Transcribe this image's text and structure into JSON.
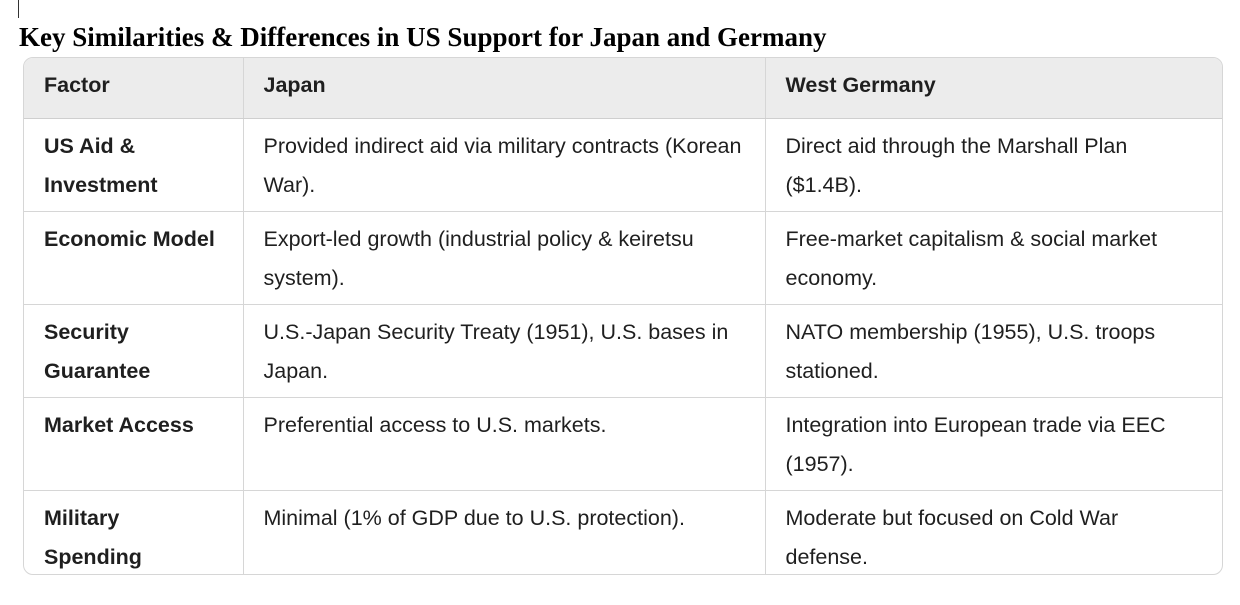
{
  "title": "Key Similarities & Differences in US Support for Japan and Germany",
  "table": {
    "headers": [
      "Factor",
      "Japan",
      "West Germany"
    ],
    "rows": [
      [
        "US Aid & Investment",
        "Provided indirect aid via military contracts (Korean War).",
        "Direct aid through the Marshall Plan ($1.4B)."
      ],
      [
        "Economic Model",
        "Export-led growth (industrial policy & keiretsu system).",
        "Free-market capitalism & social market economy."
      ],
      [
        "Security Guarantee",
        "U.S.-Japan Security Treaty (1951), U.S. bases in Japan.",
        "NATO membership (1955), U.S. troops stationed."
      ],
      [
        "Market Access",
        "Preferential access to U.S. markets.",
        "Integration into European trade via EEC (1957)."
      ],
      [
        "Military Spending",
        "Minimal (1% of GDP due to U.S. protection).",
        "Moderate but focused on Cold War defense."
      ]
    ]
  }
}
